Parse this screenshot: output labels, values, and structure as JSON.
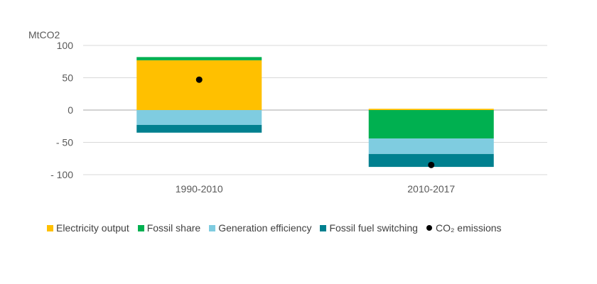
{
  "chart_data": {
    "type": "bar",
    "stacked": true,
    "categories": [
      "1990-2010",
      "2010-2017"
    ],
    "ylabel": "MtCO2",
    "ylim": [
      -100,
      100
    ],
    "yticks": [
      {
        "value": 100,
        "label": "100"
      },
      {
        "value": 50,
        "label": "50"
      },
      {
        "value": 0,
        "label": "0"
      },
      {
        "value": -50,
        "label": "- 50"
      },
      {
        "value": -100,
        "label": "- 100"
      }
    ],
    "grid": true,
    "legend_position": "bottom",
    "series": [
      {
        "name": "Electricity output",
        "color": "#FFC000",
        "values": [
          77,
          2
        ]
      },
      {
        "name": "Fossil share",
        "color": "#00B050",
        "values": [
          5,
          -44
        ]
      },
      {
        "name": "Generation efficiency",
        "color": "#7FCCE0",
        "values": [
          -23,
          -24
        ]
      },
      {
        "name": "Fossil fuel switching",
        "color": "#00808F",
        "values": [
          -12,
          -20
        ]
      }
    ],
    "points": {
      "name": "CO₂ emissions",
      "color": "#000000",
      "values": [
        47,
        -85
      ]
    }
  }
}
